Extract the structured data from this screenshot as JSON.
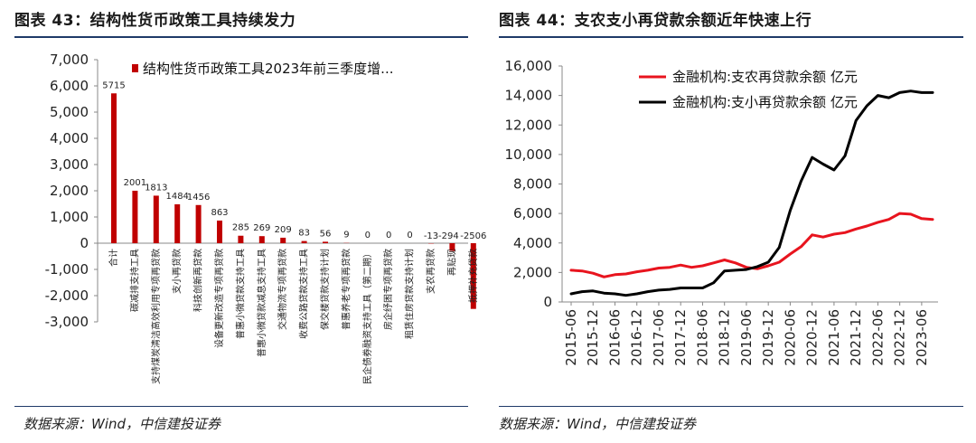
{
  "left_panel": {
    "title": "图表 43：结构性货币政策工具持续发力",
    "source": "数据来源：Wind，中信建投证券"
  },
  "right_panel": {
    "title": "图表 44：支农支小再贷款余额近年快速上行",
    "source": "数据来源：Wind，中信建投证券"
  },
  "chart_data": [
    {
      "type": "bar",
      "title": "",
      "legend": "结构性货币政策工具2023年前三季度增...",
      "color": "#c00000",
      "ylim": [
        -3000,
        7000
      ],
      "yticks": [
        7000,
        6000,
        5000,
        4000,
        3000,
        2000,
        1000,
        0,
        -1000,
        -2000,
        -3000
      ],
      "ytick_labels": [
        "7,000",
        "6,000",
        "5,000",
        "4,000",
        "3,000",
        "2,000",
        "1,000",
        "0",
        "-1,000",
        "-2,000",
        "-3,000"
      ],
      "categories": [
        "合计",
        "碳减排支持工具",
        "支持煤炭清洁高效利用专项再贷款",
        "支小再贷款",
        "科技创新再贷款",
        "设备更新改造专项再贷款",
        "普惠小微贷款支持工具",
        "普惠小微贷款减息支持工具",
        "交通物流专项再贷款",
        "收费公路贷款支持工具",
        "保交楼贷款支持计划",
        "普惠养老专项再贷款",
        "民企债券融资支持工具（第二期）",
        "房企纾困专项再贷款",
        "租赁住房贷款支持计划",
        "支农再贷款",
        "再贴现",
        "抵押补充贷款"
      ],
      "values": [
        5715,
        2001,
        1813,
        1484,
        1456,
        863,
        285,
        269,
        209,
        83,
        56,
        9,
        0,
        0,
        0,
        -13,
        -294,
        -2506
      ],
      "value_labels": [
        "5715",
        "2001",
        "1813",
        "1484",
        "1456",
        "863",
        "285",
        "269",
        "209",
        "83",
        "56",
        "9",
        "0",
        "0",
        "0",
        "-13",
        "-294",
        "-2506"
      ]
    },
    {
      "type": "line",
      "title": "",
      "ylim": [
        0,
        16000
      ],
      "yticks": [
        16000,
        14000,
        12000,
        10000,
        8000,
        6000,
        4000,
        2000,
        0
      ],
      "ytick_labels": [
        "16,000",
        "14,000",
        "12,000",
        "10,000",
        "8,000",
        "6,000",
        "4,000",
        "2,000",
        "0"
      ],
      "x_tick_labels": [
        "2015-06",
        "2015-12",
        "2016-06",
        "2016-12",
        "2017-06",
        "2017-12",
        "2018-06",
        "2018-12",
        "2019-06",
        "2019-12",
        "2020-06",
        "2020-12",
        "2021-06",
        "2021-12",
        "2022-06",
        "2022-12",
        "2023-06"
      ],
      "x": [
        "2015-06",
        "2015-09",
        "2015-12",
        "2016-03",
        "2016-06",
        "2016-09",
        "2016-12",
        "2017-03",
        "2017-06",
        "2017-09",
        "2017-12",
        "2018-03",
        "2018-06",
        "2018-09",
        "2018-12",
        "2019-03",
        "2019-06",
        "2019-09",
        "2019-12",
        "2020-03",
        "2020-06",
        "2020-09",
        "2020-12",
        "2021-03",
        "2021-06",
        "2021-09",
        "2021-12",
        "2022-03",
        "2022-06",
        "2022-09",
        "2022-12",
        "2023-03",
        "2023-06",
        "2023-09"
      ],
      "series": [
        {
          "name": "金融机构:支农再贷款余额 亿元",
          "color": "#e8141e",
          "values": [
            2150,
            2100,
            1950,
            1700,
            1850,
            1900,
            2050,
            2150,
            2300,
            2350,
            2500,
            2350,
            2450,
            2650,
            2850,
            2650,
            2350,
            2250,
            2450,
            2700,
            3250,
            3750,
            4550,
            4400,
            4600,
            4700,
            4950,
            5150,
            5400,
            5600,
            6000,
            5950,
            5650,
            5600
          ]
        },
        {
          "name": "金融机构:支小再贷款余额 亿元",
          "color": "#000000",
          "values": [
            550,
            700,
            750,
            600,
            550,
            450,
            550,
            700,
            800,
            850,
            950,
            950,
            950,
            1300,
            2100,
            2150,
            2200,
            2400,
            2700,
            3700,
            6200,
            8200,
            9800,
            9350,
            8950,
            9900,
            12300,
            13300,
            14000,
            13850,
            14200,
            14300,
            14200,
            14200
          ]
        }
      ]
    }
  ]
}
